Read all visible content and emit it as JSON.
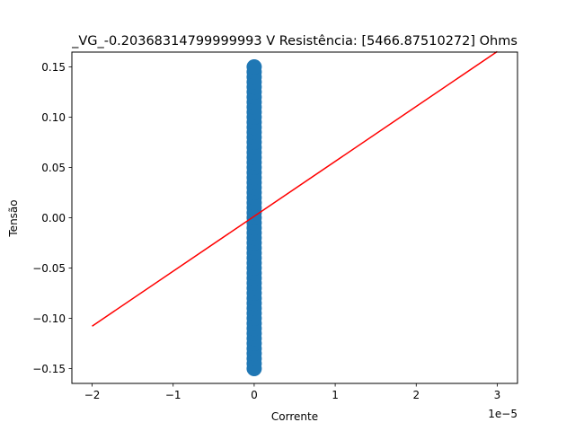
{
  "chart_data": {
    "type": "scatter",
    "title": "_VG_-0.20368314799999993 V  Resistência: [5466.87510272] Ohms",
    "xlabel": "Corrente",
    "ylabel": "Tensão",
    "x_offset_label": "1e−5",
    "xlim": [
      -2.25,
      3.25
    ],
    "ylim": [
      -0.16475,
      0.16475
    ],
    "x_ticks": [
      -2,
      -1,
      0,
      1,
      2,
      3
    ],
    "x_tick_labels": [
      "−2",
      "−1",
      "0",
      "1",
      "2",
      "3"
    ],
    "y_ticks": [
      -0.15,
      -0.1,
      -0.05,
      0.0,
      0.05,
      0.1,
      0.15
    ],
    "y_tick_labels": [
      "−0.15",
      "−0.10",
      "−0.05",
      "0.00",
      "0.05",
      "0.10",
      "0.15"
    ],
    "grid": false,
    "series": [
      {
        "kind": "scatter",
        "color": "#1f77b4",
        "x": [
          0,
          0,
          0,
          0,
          0,
          0,
          0,
          0,
          0,
          0,
          0,
          0,
          0,
          0,
          0,
          0,
          0,
          0,
          0,
          0,
          0,
          0,
          0,
          0,
          0,
          0,
          0,
          0,
          0,
          0,
          0,
          0,
          0,
          0,
          0,
          0,
          0,
          0,
          0,
          0,
          0,
          0,
          0,
          0,
          0,
          0,
          0,
          0,
          0,
          0,
          0,
          0,
          0,
          0,
          0,
          0,
          0,
          0,
          0,
          0,
          0
        ],
        "y": [
          -0.15,
          -0.145,
          -0.14,
          -0.135,
          -0.13,
          -0.125,
          -0.12,
          -0.115,
          -0.11,
          -0.105,
          -0.1,
          -0.095,
          -0.09,
          -0.085,
          -0.08,
          -0.075,
          -0.07,
          -0.065,
          -0.06,
          -0.055,
          -0.05,
          -0.045,
          -0.04,
          -0.035,
          -0.03,
          -0.025,
          -0.02,
          -0.015,
          -0.01,
          -0.005,
          0,
          0.005,
          0.01,
          0.015,
          0.02,
          0.025,
          0.03,
          0.035,
          0.04,
          0.045,
          0.05,
          0.055,
          0.06,
          0.065,
          0.07,
          0.075,
          0.08,
          0.085,
          0.09,
          0.095,
          0.1,
          0.105,
          0.11,
          0.115,
          0.12,
          0.125,
          0.13,
          0.135,
          0.14,
          0.145,
          0.15
        ]
      },
      {
        "kind": "line",
        "color": "#ff0000",
        "x": [
          -2,
          3
        ],
        "y": [
          -0.1078,
          0.1653
        ]
      }
    ]
  }
}
